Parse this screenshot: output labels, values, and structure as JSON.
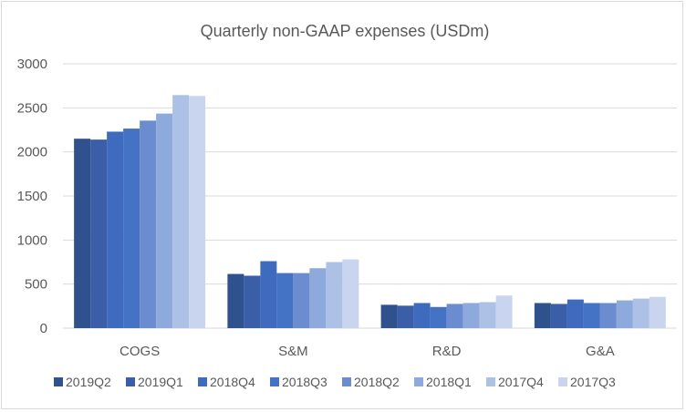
{
  "chart_data": {
    "type": "bar",
    "title": "Quarterly non-GAAP expenses (USDm)",
    "xlabel": "",
    "ylabel": "",
    "ylim": [
      0,
      3000
    ],
    "yticks": [
      0,
      500,
      1000,
      1500,
      2000,
      2500,
      3000
    ],
    "grid": true,
    "legend_position": "bottom",
    "categories": [
      "COGS",
      "S&M",
      "R&D",
      "G&A"
    ],
    "series": [
      {
        "name": "2019Q2",
        "color": "#2f528f",
        "values": [
          2150,
          615,
          265,
          285
        ]
      },
      {
        "name": "2019Q1",
        "color": "#3a5fa8",
        "values": [
          2140,
          595,
          255,
          275
        ]
      },
      {
        "name": "2018Q4",
        "color": "#3f6bbf",
        "values": [
          2230,
          760,
          285,
          325
        ]
      },
      {
        "name": "2018Q3",
        "color": "#4472c4",
        "values": [
          2265,
          625,
          240,
          285
        ]
      },
      {
        "name": "2018Q2",
        "color": "#6b8dd0",
        "values": [
          2355,
          625,
          275,
          285
        ]
      },
      {
        "name": "2018Q1",
        "color": "#8ea9db",
        "values": [
          2435,
          680,
          285,
          315
        ]
      },
      {
        "name": "2017Q4",
        "color": "#adc0e5",
        "values": [
          2645,
          750,
          295,
          335
        ]
      },
      {
        "name": "2017Q3",
        "color": "#c9d5ee",
        "values": [
          2635,
          780,
          370,
          355
        ]
      }
    ]
  }
}
